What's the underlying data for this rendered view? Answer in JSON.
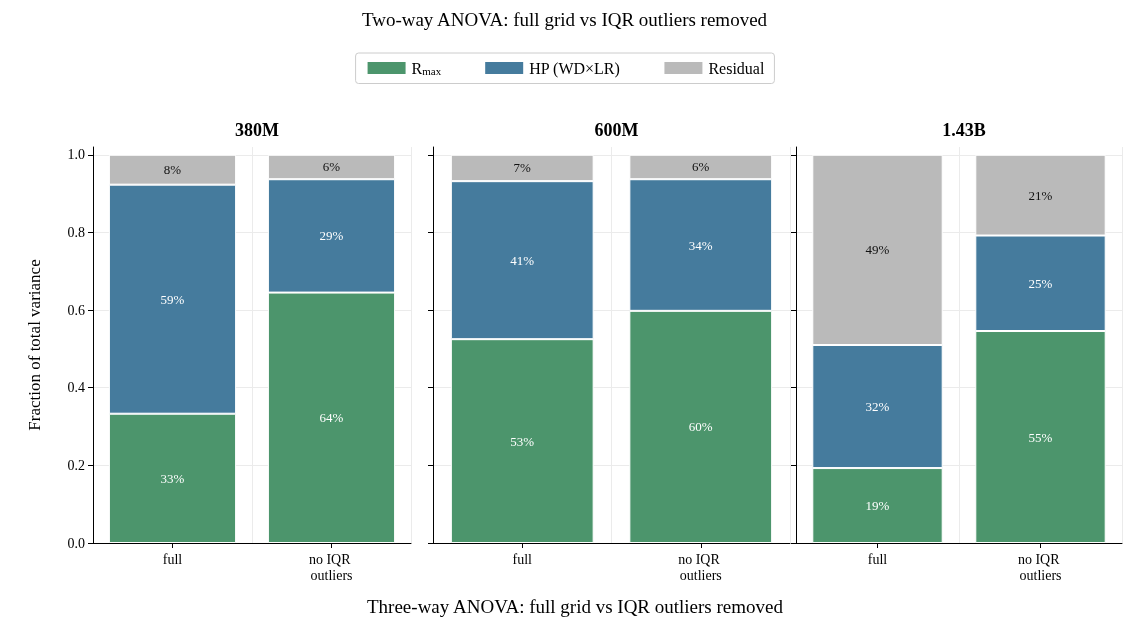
{
  "chart_data": [
    {
      "type": "bar",
      "title": "380M",
      "ylabel": "Fraction of total variance",
      "categories": [
        "full",
        "no IQR outliers"
      ],
      "stacked": true,
      "grid": true,
      "legend": false,
      "ylim": [
        0,
        1.02
      ],
      "yticks": [
        {
          "value": 0,
          "label": "0.0"
        },
        {
          "value": 0.2,
          "label": "0.2"
        },
        {
          "value": 0.4,
          "label": "0.4"
        },
        {
          "value": 0.6,
          "label": "0.6"
        },
        {
          "value": 0.8,
          "label": "0.8"
        },
        {
          "value": 1,
          "label": "1.0"
        }
      ],
      "series": [
        {
          "color": "#4c956c",
          "values": [
            0.333,
            0.645
          ],
          "value_labels": [
            "33%",
            "64%"
          ]
        },
        {
          "color": "#457b9d",
          "values": [
            0.59,
            0.292
          ],
          "value_labels": [
            "59%",
            "29%"
          ]
        },
        {
          "color": "#bababa",
          "values": [
            0.077,
            0.063
          ],
          "value_labels": [
            "8%",
            "6%"
          ]
        }
      ]
    },
    {
      "type": "bar",
      "title": "600M",
      "xlabel": "Three-way ANOVA: full grid vs IQR outliers removed",
      "annotations": [
        "Two-way ANOVA: full grid vs IQR outliers removed"
      ],
      "categories": [
        "full",
        "no IQR outliers"
      ],
      "stacked": true,
      "grid": true,
      "legend": "top",
      "tick_labels": "x",
      "ylim": [
        0,
        1.02
      ],
      "yticks": [
        {
          "value": 0,
          "label": null
        },
        {
          "value": 0.2,
          "label": null
        },
        {
          "value": 0.4,
          "label": null
        },
        {
          "value": 0.6,
          "label": null
        },
        {
          "value": 0.8,
          "label": null
        },
        {
          "value": 1,
          "label": null
        }
      ],
      "series": [
        {
          "name": "R$_{max}$",
          "color": "#4c956c",
          "values": [
            0.525,
            0.598
          ],
          "value_labels": [
            "53%",
            "60%"
          ]
        },
        {
          "name": "HP (WD×LR)",
          "color": "#457b9d",
          "values": [
            0.407,
            0.339
          ],
          "value_labels": [
            "41%",
            "34%"
          ]
        },
        {
          "name": "Residual",
          "color": "#bababa",
          "values": [
            0.068,
            0.063
          ],
          "value_labels": [
            "7%",
            "6%"
          ]
        }
      ]
    },
    {
      "type": "bar",
      "title": "1.43B",
      "categories": [
        "full",
        "no IQR outliers"
      ],
      "stacked": true,
      "grid": true,
      "legend": false,
      "tick_labels": "x",
      "ylim": [
        0,
        1.02
      ],
      "yticks": [
        {
          "value": 0,
          "label": null
        },
        {
          "value": 0.2,
          "label": null
        },
        {
          "value": 0.4,
          "label": null
        },
        {
          "value": 0.6,
          "label": null
        },
        {
          "value": 0.8,
          "label": null
        },
        {
          "value": 1,
          "label": null
        }
      ],
      "series": [
        {
          "color": "#4c956c",
          "values": [
            0.193,
            0.546
          ],
          "value_labels": [
            "19%",
            "55%"
          ]
        },
        {
          "color": "#457b9d",
          "values": [
            0.317,
            0.246
          ],
          "value_labels": [
            "32%",
            "25%"
          ]
        },
        {
          "color": "#bababa",
          "values": [
            0.49,
            0.208
          ],
          "value_labels": [
            "49%",
            "21%"
          ]
        }
      ]
    }
  ]
}
